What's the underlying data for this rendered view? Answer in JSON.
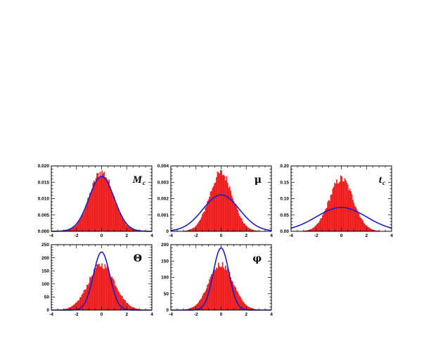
{
  "chart_data": [
    {
      "type": "histogram",
      "label": "M",
      "label_sub": "c",
      "label_style": "italic",
      "xlim": [
        -4,
        4
      ],
      "ylim": [
        0,
        0.02
      ],
      "xticks": [
        -4,
        -2,
        0,
        2,
        4
      ],
      "xtick_labels": [
        "-4",
        "-2",
        "0",
        "2",
        "4"
      ],
      "yticks": [
        0,
        0.005,
        0.01,
        0.015,
        0.02
      ],
      "ytick_labels": [
        "0.000",
        "0.005",
        "0.010",
        "0.015",
        "0.020"
      ],
      "histogram": {
        "peak": 0.018,
        "sigma": 0.95,
        "color": "#ff2a2a"
      },
      "curve": {
        "type": "gaussian",
        "peak": 0.0168,
        "sigma": 1.0,
        "color": "#1c1cc8"
      }
    },
    {
      "type": "histogram",
      "label": "μ",
      "label_sub": "",
      "label_style": "greek",
      "xlim": [
        -4,
        4
      ],
      "ylim": [
        0,
        0.004
      ],
      "xticks": [
        -4,
        -2,
        0,
        2,
        4
      ],
      "xtick_labels": [
        "-4",
        "-2",
        "0",
        "2",
        "4"
      ],
      "yticks": [
        0,
        0.001,
        0.002,
        0.003,
        0.004
      ],
      "ytick_labels": [
        "0",
        "0.001",
        "0.002",
        "0.003",
        "0.004"
      ],
      "histogram": {
        "peak": 0.00355,
        "sigma": 0.92,
        "color": "#ff2a2a"
      },
      "curve": {
        "type": "gaussian",
        "peak": 0.00223,
        "sigma": 1.45,
        "color": "#1c1cc8"
      }
    },
    {
      "type": "histogram",
      "label": "t",
      "label_sub": "c",
      "label_style": "italic",
      "xlim": [
        -4,
        4
      ],
      "ylim": [
        0,
        0.2
      ],
      "xticks": [
        -4,
        -2,
        0,
        2,
        4
      ],
      "xtick_labels": [
        "-4",
        "-2",
        "0",
        "2",
        "4"
      ],
      "yticks": [
        0,
        0.05,
        0.1,
        0.15,
        0.2
      ],
      "ytick_labels": [
        "0.00",
        "0.05",
        "0.10",
        "0.15",
        "0.20"
      ],
      "histogram": {
        "peak": 0.16,
        "sigma": 0.95,
        "color": "#ff2a2a"
      },
      "curve": {
        "type": "gaussian",
        "peak": 0.073,
        "sigma": 2.0,
        "color": "#1c1cc8"
      }
    },
    {
      "type": "histogram",
      "label": "Θ",
      "label_sub": "",
      "label_style": "greek",
      "xlim": [
        -4,
        4
      ],
      "ylim": [
        0,
        250
      ],
      "xticks": [
        -4,
        -2,
        0,
        2,
        4
      ],
      "xtick_labels": [
        "-4",
        "-2",
        "0",
        "2",
        "4"
      ],
      "yticks": [
        0,
        50,
        100,
        150,
        200,
        250
      ],
      "ytick_labels": [
        "0",
        "50",
        "100",
        "150",
        "200",
        "250"
      ],
      "histogram": {
        "peak": 172,
        "sigma": 1.05,
        "color": "#ff2a2a"
      },
      "curve": {
        "type": "gaussian",
        "peak": 222,
        "sigma": 0.65,
        "color": "#1c1cc8"
      }
    },
    {
      "type": "histogram",
      "label": "φ",
      "label_sub": "",
      "label_style": "greek",
      "xlim": [
        -4,
        4
      ],
      "ylim": [
        0,
        200
      ],
      "xticks": [
        -4,
        -2,
        0,
        2,
        4
      ],
      "xtick_labels": [
        "-4",
        "-2",
        "0",
        "2",
        "4"
      ],
      "yticks": [
        0,
        50,
        100,
        150,
        200
      ],
      "ytick_labels": [
        "0",
        "50",
        "100",
        "150",
        "200"
      ],
      "histogram": {
        "peak": 140,
        "sigma": 0.95,
        "color": "#ff2a2a"
      },
      "curve": {
        "type": "gaussian",
        "peak": 190,
        "sigma": 0.62,
        "color": "#1c1cc8"
      }
    }
  ]
}
